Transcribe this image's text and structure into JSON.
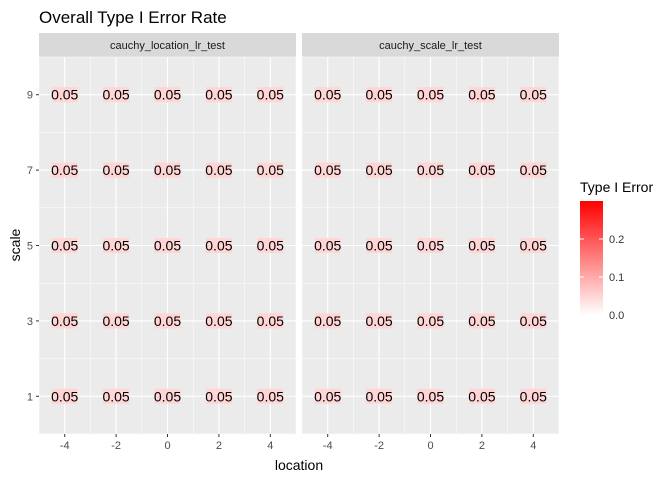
{
  "chart_data": {
    "type": "heatmap",
    "title": "Overall Type I Error Rate",
    "xlabel": "location",
    "ylabel": "scale",
    "x": [
      -4,
      -2,
      0,
      2,
      4
    ],
    "y": [
      1,
      3,
      5,
      7,
      9
    ],
    "x_tick_labels": [
      "-4",
      "-2",
      "0",
      "2",
      "4"
    ],
    "y_tick_labels": [
      "1",
      "3",
      "5",
      "7",
      "9"
    ],
    "facets": [
      {
        "name": "cauchy_location_lr_test",
        "values": [
          [
            0.05,
            0.05,
            0.05,
            0.05,
            0.05
          ],
          [
            0.05,
            0.05,
            0.05,
            0.05,
            0.05
          ],
          [
            0.05,
            0.05,
            0.05,
            0.05,
            0.05
          ],
          [
            0.05,
            0.05,
            0.05,
            0.05,
            0.05
          ],
          [
            0.05,
            0.05,
            0.05,
            0.05,
            0.05
          ]
        ],
        "labels": [
          [
            "0.05",
            "0.05",
            "0.05",
            "0.05",
            "0.05"
          ],
          [
            "0.05",
            "0.05",
            "0.05",
            "0.05",
            "0.05"
          ],
          [
            "0.05",
            "0.05",
            "0.05",
            "0.05",
            "0.05"
          ],
          [
            "0.05",
            "0.05",
            "0.05",
            "0.05",
            "0.05"
          ],
          [
            "0.05",
            "0.05",
            "0.05",
            "0.05",
            "0.05"
          ]
        ]
      },
      {
        "name": "cauchy_scale_lr_test",
        "values": [
          [
            0.05,
            0.05,
            0.05,
            0.05,
            0.05
          ],
          [
            0.05,
            0.05,
            0.05,
            0.05,
            0.05
          ],
          [
            0.05,
            0.05,
            0.05,
            0.05,
            0.05
          ],
          [
            0.05,
            0.05,
            0.05,
            0.05,
            0.05
          ],
          [
            0.05,
            0.05,
            0.05,
            0.05,
            0.05
          ]
        ],
        "labels": [
          [
            "0.05",
            "0.05",
            "0.05",
            "0.05",
            "0.05"
          ],
          [
            "0.05",
            "0.05",
            "0.05",
            "0.05",
            "0.05"
          ],
          [
            "0.05",
            "0.05",
            "0.05",
            "0.05",
            "0.05"
          ],
          [
            "0.05",
            "0.05",
            "0.05",
            "0.05",
            "0.05"
          ],
          [
            "0.05",
            "0.05",
            "0.05",
            "0.05",
            "0.05"
          ]
        ]
      }
    ],
    "legend": {
      "title": "Type I Error",
      "position": "right",
      "tick_values": [
        0.0,
        0.1,
        0.2
      ],
      "tick_labels": [
        "0.0",
        "0.1",
        "0.2"
      ],
      "range": [
        0,
        0.3
      ],
      "low_color": "#ffffff",
      "high_color": "#ff0000"
    },
    "panel_background": "#ebebeb",
    "strip_background": "#d9d9d9",
    "grid": true
  }
}
